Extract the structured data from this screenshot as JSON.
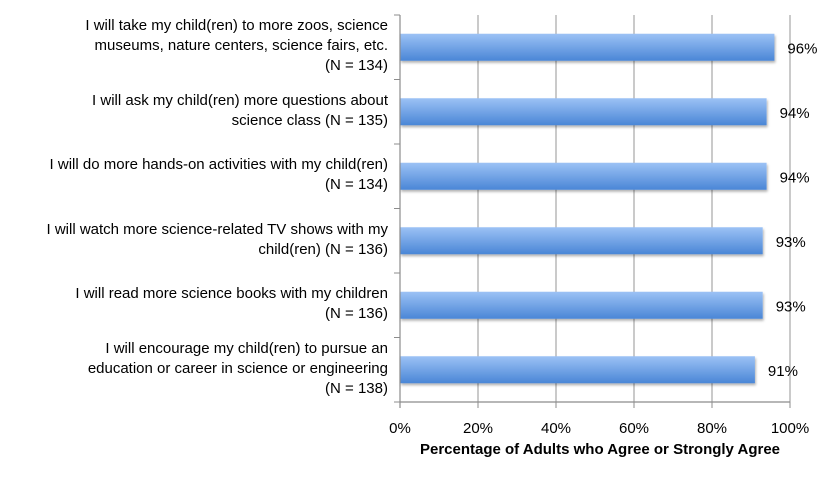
{
  "chart_data": {
    "type": "bar",
    "orientation": "horizontal",
    "title": "",
    "xlabel": "Percentage of Adults who Agree or Strongly Agree",
    "ylabel": "",
    "xlim": [
      0,
      100
    ],
    "x_ticks": [
      "0%",
      "20%",
      "40%",
      "60%",
      "80%",
      "100%"
    ],
    "grid": true,
    "categories": [
      [
        "I will take my child(ren) to more zoos, science",
        "museums, nature centers, science fairs, etc.",
        "(N = 134)"
      ],
      [
        "I will ask my child(ren) more questions about",
        "science class (N = 135)"
      ],
      [
        "I will do more hands-on activities with my child(ren)",
        "(N = 134)"
      ],
      [
        "I will watch more science-related TV shows with my",
        "child(ren) (N = 136)"
      ],
      [
        "I will read more science books with my children",
        "(N = 136)"
      ],
      [
        "I will encourage my child(ren) to pursue an",
        "education or career in science or engineering",
        "(N = 138)"
      ]
    ],
    "values": [
      96,
      94,
      94,
      93,
      93,
      91
    ],
    "value_labels": [
      "96%",
      "94%",
      "94%",
      "93%",
      "93%",
      "91%"
    ],
    "colors": {
      "bar_light": "#9cc2f5",
      "bar_dark": "#4a86d6",
      "grid": "#a6a6a6",
      "axis": "#8c8c8c"
    }
  }
}
